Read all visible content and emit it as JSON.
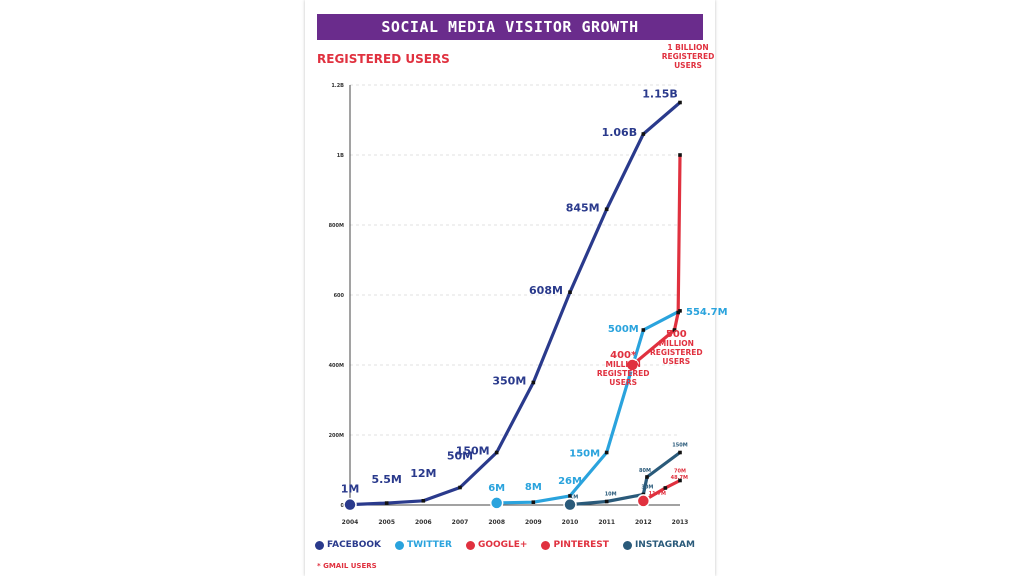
{
  "title": "SOCIAL MEDIA VISITOR GROWTH",
  "subtitle": "REGISTERED USERS",
  "footnote": "* GMAIL USERS",
  "colors": {
    "facebook": "#2a3a8c",
    "twitter": "#2aa3dd",
    "googleplus": "#e0313f",
    "pinterest": "#e0313f",
    "instagram": "#2a5a7a",
    "banner": "#6a2c8c"
  },
  "legend": [
    {
      "label": "FACEBOOK",
      "icon": "facebook-icon",
      "color": "#2a3a8c"
    },
    {
      "label": "TWITTER",
      "icon": "twitter-icon",
      "color": "#2aa3dd"
    },
    {
      "label": "GOOGLE+",
      "icon": "googleplus-icon",
      "color": "#e0313f"
    },
    {
      "label": "PINTEREST",
      "icon": "pinterest-icon",
      "color": "#e0313f"
    },
    {
      "label": "INSTAGRAM",
      "icon": "instagram-icon",
      "color": "#2a5a7a"
    }
  ],
  "chart_data": {
    "type": "line",
    "x": [
      2004,
      2005,
      2006,
      2007,
      2008,
      2009,
      2010,
      2011,
      2012,
      2013
    ],
    "ylim": [
      0,
      1200
    ],
    "y_ticks": [
      {
        "value": 0,
        "label": "0"
      },
      {
        "value": 200,
        "label": "200M"
      },
      {
        "value": 400,
        "label": "400M"
      },
      {
        "value": 600,
        "label": "600"
      },
      {
        "value": 800,
        "label": "800M"
      },
      {
        "value": 1000,
        "label": "1B"
      },
      {
        "value": 1200,
        "label": "1.2B"
      }
    ],
    "grid": true,
    "series": [
      {
        "name": "FACEBOOK",
        "color": "#2a3a8c",
        "points": [
          {
            "x": 2004,
            "y": 1,
            "label": "1M"
          },
          {
            "x": 2005,
            "y": 5.5,
            "label": "5.5M"
          },
          {
            "x": 2006,
            "y": 12,
            "label": "12M"
          },
          {
            "x": 2007,
            "y": 50,
            "label": "50M"
          },
          {
            "x": 2008,
            "y": 150,
            "label": "150M"
          },
          {
            "x": 2009,
            "y": 350,
            "label": "350M"
          },
          {
            "x": 2010,
            "y": 608,
            "label": "608M"
          },
          {
            "x": 2011,
            "y": 845,
            "label": "845M"
          },
          {
            "x": 2012,
            "y": 1060,
            "label": "1.06B"
          },
          {
            "x": 2013,
            "y": 1150,
            "label": "1.15B"
          }
        ]
      },
      {
        "name": "TWITTER",
        "color": "#2aa3dd",
        "points": [
          {
            "x": 2008,
            "y": 6,
            "label": "6M"
          },
          {
            "x": 2009,
            "y": 8,
            "label": "8M"
          },
          {
            "x": 2010,
            "y": 26,
            "label": "26M"
          },
          {
            "x": 2011,
            "y": 150,
            "label": "150M"
          },
          {
            "x": 2012,
            "y": 500,
            "label": "500M"
          },
          {
            "x": 2013,
            "y": 554.7,
            "label": "554.7M"
          }
        ]
      },
      {
        "name": "GOOGLE+",
        "color": "#e0313f",
        "points": [
          {
            "x": 2011.7,
            "y": 400,
            "label": ""
          },
          {
            "x": 2012.85,
            "y": 500,
            "label": ""
          },
          {
            "x": 2012.95,
            "y": 550,
            "label": ""
          },
          {
            "x": 2013,
            "y": 1000,
            "label": ""
          }
        ]
      },
      {
        "name": "INSTAGRAM",
        "color": "#2a5a7a",
        "points": [
          {
            "x": 2010,
            "y": 1,
            "label": "1M"
          },
          {
            "x": 2011,
            "y": 10,
            "label": "10M"
          },
          {
            "x": 2012,
            "y": 30,
            "label": "30M"
          },
          {
            "x": 2012.1,
            "y": 80,
            "label": "80M"
          },
          {
            "x": 2013,
            "y": 150,
            "label": "150M"
          }
        ]
      },
      {
        "name": "PINTEREST",
        "color": "#e0313f",
        "points": [
          {
            "x": 2012,
            "y": 11.7,
            "label": "11.7M"
          },
          {
            "x": 2012.6,
            "y": 48.7,
            "label": "48.7M"
          },
          {
            "x": 2013,
            "y": 70,
            "label": "70M"
          }
        ]
      }
    ],
    "annotations": [
      {
        "text": [
          "1 BILLION",
          "REGISTERED",
          "USERS"
        ],
        "x": 2013,
        "y": 1100,
        "color": "#e0313f"
      },
      {
        "text": [
          "400*",
          "MILLION",
          "REGISTERED",
          "USERS"
        ],
        "x": 2011.45,
        "y": 420,
        "color": "#e0313f"
      },
      {
        "text": [
          "500",
          "MILLION",
          "REGISTERED",
          "USERS"
        ],
        "x": 2012.9,
        "y": 480,
        "color": "#e0313f"
      }
    ]
  }
}
